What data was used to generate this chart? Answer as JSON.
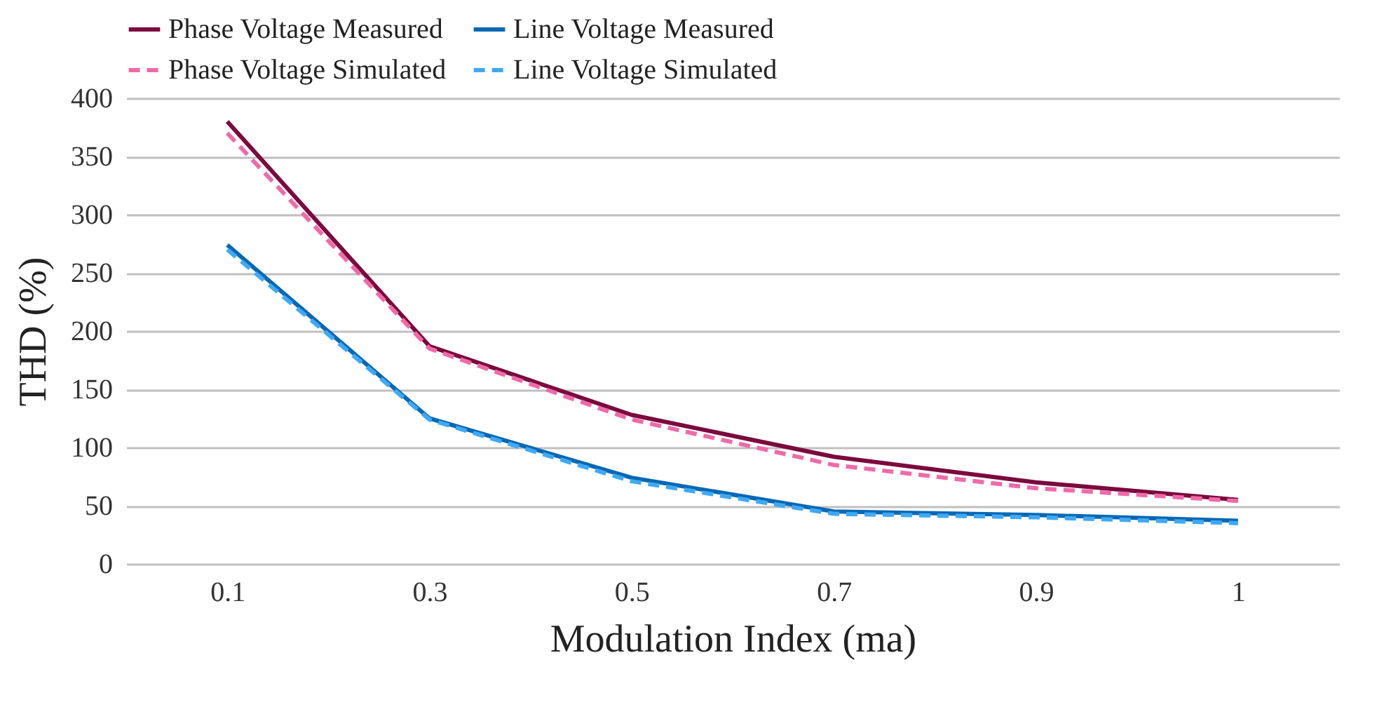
{
  "chart_data": {
    "type": "line",
    "xlabel": "Modulation Index (ma)",
    "ylabel": "THD (%)",
    "categories": [
      "0.1",
      "0.3",
      "0.5",
      "0.7",
      "0.9",
      "1"
    ],
    "series": [
      {
        "name": "Phase Voltage Measured",
        "color": "#7b0a3e",
        "line_style": "solid",
        "values": [
          380,
          187,
          128,
          92,
          70,
          55
        ]
      },
      {
        "name": "Line Voltage Measured",
        "color": "#0868b4",
        "line_style": "solid",
        "values": [
          274,
          125,
          74,
          45,
          42,
          37
        ]
      },
      {
        "name": "Phase Voltage Simulated",
        "color": "#f06aa8",
        "line_style": "dashed",
        "values": [
          370,
          185,
          124,
          85,
          65,
          54
        ]
      },
      {
        "name": "Line Voltage Simulated",
        "color": "#3fa9f5",
        "line_style": "dashed",
        "values": [
          270,
          124,
          71,
          43,
          40,
          35
        ]
      }
    ],
    "ylim": [
      0,
      400
    ],
    "yticks": [
      0,
      50,
      100,
      150,
      200,
      250,
      300,
      350,
      400
    ],
    "grid": "y",
    "legend": "top"
  }
}
